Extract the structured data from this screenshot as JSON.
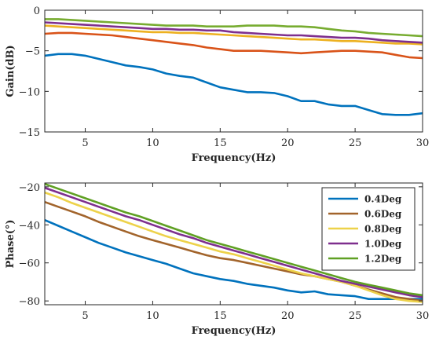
{
  "chart_data": [
    {
      "type": "line",
      "xlabel": "Frequency(Hz)",
      "ylabel": "Gain(dB)",
      "xlim": [
        2,
        30
      ],
      "ylim": [
        -15,
        0
      ],
      "xticks": [
        5,
        10,
        15,
        20,
        25,
        30
      ],
      "yticks": [
        0,
        -5,
        -10,
        -15
      ],
      "grid": false,
      "legend": "none",
      "series": [
        {
          "color": "#0072BD",
          "x": [
            2,
            3,
            4,
            5,
            6,
            7,
            8,
            9,
            10,
            11,
            12,
            13,
            14,
            15,
            16,
            17,
            18,
            19,
            20,
            21,
            22,
            23,
            24,
            25,
            26,
            27,
            28,
            29,
            30
          ],
          "y": [
            -5.6,
            -5.4,
            -5.4,
            -5.6,
            -6.0,
            -6.4,
            -6.8,
            -7.0,
            -7.3,
            -7.8,
            -8.1,
            -8.3,
            -8.9,
            -9.5,
            -9.8,
            -10.1,
            -10.1,
            -10.2,
            -10.6,
            -11.2,
            -11.2,
            -11.6,
            -11.8,
            -11.8,
            -12.3,
            -12.8,
            -12.9,
            -12.9,
            -12.7
          ]
        },
        {
          "color": "#D95319",
          "x": [
            2,
            3,
            4,
            5,
            6,
            7,
            8,
            9,
            10,
            11,
            12,
            13,
            14,
            15,
            16,
            17,
            18,
            19,
            20,
            21,
            22,
            23,
            24,
            25,
            26,
            27,
            28,
            29,
            30
          ],
          "y": [
            -2.9,
            -2.8,
            -2.8,
            -2.9,
            -3.0,
            -3.1,
            -3.3,
            -3.5,
            -3.7,
            -3.9,
            -4.1,
            -4.3,
            -4.6,
            -4.8,
            -5.0,
            -5.0,
            -5.0,
            -5.1,
            -5.2,
            -5.3,
            -5.2,
            -5.1,
            -5.0,
            -5.0,
            -5.1,
            -5.2,
            -5.5,
            -5.8,
            -5.9
          ]
        },
        {
          "color": "#EDB120",
          "x": [
            2,
            3,
            4,
            5,
            6,
            7,
            8,
            9,
            10,
            11,
            12,
            13,
            14,
            15,
            16,
            17,
            18,
            19,
            20,
            21,
            22,
            23,
            24,
            25,
            26,
            27,
            28,
            29,
            30
          ],
          "y": [
            -1.9,
            -2.0,
            -2.1,
            -2.2,
            -2.3,
            -2.4,
            -2.5,
            -2.6,
            -2.7,
            -2.7,
            -2.8,
            -2.8,
            -2.9,
            -3.0,
            -3.1,
            -3.2,
            -3.3,
            -3.4,
            -3.5,
            -3.6,
            -3.6,
            -3.7,
            -3.8,
            -3.8,
            -3.9,
            -4.0,
            -4.1,
            -4.1,
            -4.2
          ]
        },
        {
          "color": "#7E2F8E",
          "x": [
            2,
            3,
            4,
            5,
            6,
            7,
            8,
            9,
            10,
            11,
            12,
            13,
            14,
            15,
            16,
            17,
            18,
            19,
            20,
            21,
            22,
            23,
            24,
            25,
            26,
            27,
            28,
            29,
            30
          ],
          "y": [
            -1.5,
            -1.6,
            -1.7,
            -1.8,
            -1.9,
            -2.0,
            -2.1,
            -2.2,
            -2.3,
            -2.3,
            -2.4,
            -2.4,
            -2.5,
            -2.5,
            -2.7,
            -2.8,
            -2.9,
            -3.0,
            -3.1,
            -3.1,
            -3.2,
            -3.3,
            -3.4,
            -3.4,
            -3.5,
            -3.7,
            -3.8,
            -3.9,
            -4.0
          ]
        },
        {
          "color": "#77AC30",
          "x": [
            2,
            3,
            4,
            5,
            6,
            7,
            8,
            9,
            10,
            11,
            12,
            13,
            14,
            15,
            16,
            17,
            18,
            19,
            20,
            21,
            22,
            23,
            24,
            25,
            26,
            27,
            28,
            29,
            30
          ],
          "y": [
            -1.1,
            -1.1,
            -1.2,
            -1.3,
            -1.4,
            -1.5,
            -1.6,
            -1.7,
            -1.8,
            -1.9,
            -1.9,
            -1.9,
            -2.0,
            -2.0,
            -2.0,
            -1.9,
            -1.9,
            -1.9,
            -2.0,
            -2.0,
            -2.1,
            -2.3,
            -2.5,
            -2.6,
            -2.8,
            -2.9,
            -3.0,
            -3.1,
            -3.2
          ]
        }
      ]
    },
    {
      "type": "line",
      "xlabel": "Frequency(Hz)",
      "ylabel": "Phase(°)",
      "xlim": [
        2,
        30
      ],
      "ylim": [
        -82,
        -18
      ],
      "xticks": [
        5,
        10,
        15,
        20,
        25,
        30
      ],
      "yticks": [
        -20,
        -40,
        -60,
        -80
      ],
      "grid": false,
      "legend": "top-right",
      "series": [
        {
          "name": "0.4Deg",
          "color": "#0072BD",
          "x": [
            2,
            3,
            4,
            5,
            6,
            7,
            8,
            9,
            10,
            11,
            12,
            13,
            14,
            15,
            16,
            17,
            18,
            19,
            20,
            21,
            22,
            23,
            24,
            25,
            26,
            27,
            28,
            29,
            30
          ],
          "y": [
            -37.5,
            -40.5,
            -43.5,
            -46.5,
            -49.5,
            -52,
            -54.5,
            -56.5,
            -58.5,
            -60.5,
            -63,
            -65.5,
            -67,
            -68.5,
            -69.5,
            -71,
            -72,
            -73,
            -74.5,
            -75.5,
            -75,
            -76.5,
            -77,
            -77.5,
            -79,
            -79,
            -79,
            -79,
            -79
          ]
        },
        {
          "name": "0.6Deg",
          "color": "#A2642B",
          "x": [
            2,
            3,
            4,
            5,
            6,
            7,
            8,
            9,
            10,
            11,
            12,
            13,
            14,
            15,
            16,
            17,
            18,
            19,
            20,
            21,
            22,
            23,
            24,
            25,
            26,
            27,
            28,
            29,
            30
          ],
          "y": [
            -28,
            -30.5,
            -33,
            -35.5,
            -38.5,
            -41,
            -43.5,
            -46,
            -48,
            -50,
            -52,
            -54,
            -56,
            -57.5,
            -58.5,
            -60,
            -61.5,
            -63,
            -64.5,
            -66,
            -67,
            -68.5,
            -70,
            -72,
            -74,
            -76,
            -78,
            -79,
            -80
          ]
        },
        {
          "name": "0.8Deg",
          "color": "#EDD24A",
          "x": [
            2,
            3,
            4,
            5,
            6,
            7,
            8,
            9,
            10,
            11,
            12,
            13,
            14,
            15,
            16,
            17,
            18,
            19,
            20,
            21,
            22,
            23,
            24,
            25,
            26,
            27,
            28,
            29,
            30
          ],
          "y": [
            -23,
            -25.5,
            -28.5,
            -31,
            -33.5,
            -36,
            -38.5,
            -41,
            -43.5,
            -46,
            -48,
            -50,
            -52,
            -54,
            -55.5,
            -57.5,
            -59.5,
            -61.5,
            -63.5,
            -65.5,
            -67,
            -68.5,
            -70,
            -72,
            -74.5,
            -77,
            -79,
            -80,
            -80.5
          ]
        },
        {
          "name": "1.0Deg",
          "color": "#7E2F8E",
          "x": [
            2,
            3,
            4,
            5,
            6,
            7,
            8,
            9,
            10,
            11,
            12,
            13,
            14,
            15,
            16,
            17,
            18,
            19,
            20,
            21,
            22,
            23,
            24,
            25,
            26,
            27,
            28,
            29,
            30
          ],
          "y": [
            -20.5,
            -23,
            -25.5,
            -28,
            -30.5,
            -33,
            -35.5,
            -37.5,
            -40,
            -42.5,
            -45,
            -47,
            -49.5,
            -51.5,
            -53.5,
            -55.5,
            -57.5,
            -59.5,
            -61.5,
            -63.5,
            -65.5,
            -67.5,
            -69.5,
            -71,
            -72.5,
            -74,
            -75.5,
            -77,
            -78
          ]
        },
        {
          "name": "1.2Deg",
          "color": "#5FA023",
          "x": [
            2,
            3,
            4,
            5,
            6,
            7,
            8,
            9,
            10,
            11,
            12,
            13,
            14,
            15,
            16,
            17,
            18,
            19,
            20,
            21,
            22,
            23,
            24,
            25,
            26,
            27,
            28,
            29,
            30
          ],
          "y": [
            -18.5,
            -21,
            -23.5,
            -26,
            -28.5,
            -31,
            -33.5,
            -35.5,
            -38,
            -40.5,
            -43,
            -45.5,
            -48,
            -50,
            -52,
            -54,
            -56,
            -58,
            -60,
            -62,
            -64,
            -66,
            -68,
            -70,
            -71.5,
            -73,
            -74.5,
            -76,
            -77
          ]
        }
      ]
    }
  ]
}
